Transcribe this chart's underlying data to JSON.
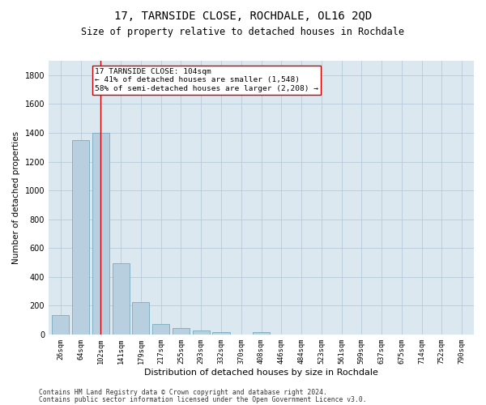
{
  "title": "17, TARNSIDE CLOSE, ROCHDALE, OL16 2QD",
  "subtitle": "Size of property relative to detached houses in Rochdale",
  "xlabel": "Distribution of detached houses by size in Rochdale",
  "ylabel": "Number of detached properties",
  "footer_line1": "Contains HM Land Registry data © Crown copyright and database right 2024.",
  "footer_line2": "Contains public sector information licensed under the Open Government Licence v3.0.",
  "bar_labels": [
    "26sqm",
    "64sqm",
    "102sqm",
    "141sqm",
    "179sqm",
    "217sqm",
    "255sqm",
    "293sqm",
    "332sqm",
    "370sqm",
    "408sqm",
    "446sqm",
    "484sqm",
    "523sqm",
    "561sqm",
    "599sqm",
    "637sqm",
    "675sqm",
    "714sqm",
    "752sqm",
    "790sqm"
  ],
  "bar_values": [
    135,
    1350,
    1400,
    495,
    225,
    75,
    45,
    28,
    15,
    0,
    18,
    0,
    0,
    0,
    0,
    0,
    0,
    0,
    0,
    0,
    0
  ],
  "bar_color": "#b8cfdf",
  "bar_edge_color": "#7aaabf",
  "highlight_bar_index": 2,
  "highlight_line_color": "#cc0000",
  "annotation_text": "17 TARNSIDE CLOSE: 104sqm\n← 41% of detached houses are smaller (1,548)\n58% of semi-detached houses are larger (2,208) →",
  "annotation_box_color": "#ffffff",
  "annotation_box_edge_color": "#cc0000",
  "ylim": [
    0,
    1900
  ],
  "yticks": [
    0,
    200,
    400,
    600,
    800,
    1000,
    1200,
    1400,
    1600,
    1800
  ],
  "bg_color": "#ffffff",
  "plot_bg_color": "#dce8f0",
  "grid_color": "#b0c4d4"
}
